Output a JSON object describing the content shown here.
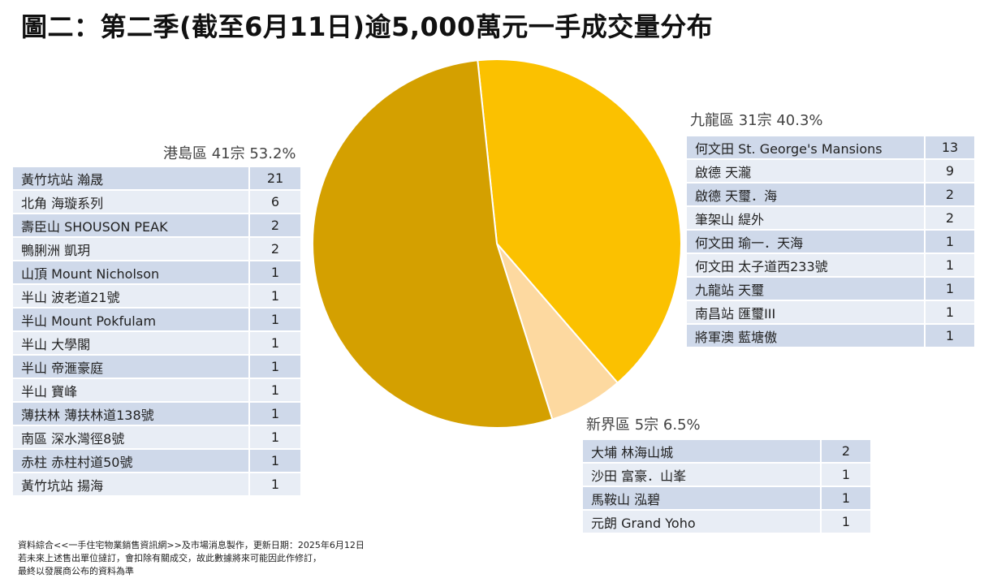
{
  "title": "圖二：第二季(截至6月11日)逾5,000萬元一手成交量分布",
  "colors": {
    "hk_island": "#d4a000",
    "kowloon": "#fbc100",
    "new_territories": "#fdd9a0",
    "row_odd": "#cfd9ea",
    "row_even": "#e8edf5"
  },
  "chart_data": {
    "type": "pie",
    "title": "圖二：第二季(截至6月11日)逾5,000萬元一手成交量分布",
    "slices": [
      {
        "label": "九龍區",
        "count": 31,
        "percent": 40.3,
        "color": "#fbc100"
      },
      {
        "label": "新界區",
        "count": 5,
        "percent": 6.5,
        "color": "#fdd9a0"
      },
      {
        "label": "港島區",
        "count": 41,
        "percent": 53.2,
        "color": "#d4a000"
      }
    ]
  },
  "regions": {
    "hk_island": {
      "heading": "港島區 41宗 53.2%",
      "rows": [
        {
          "name": "黃竹坑站 瀚晟",
          "count": "21"
        },
        {
          "name": "北角 海璇系列",
          "count": "6"
        },
        {
          "name": "壽臣山 SHOUSON PEAK",
          "count": "2"
        },
        {
          "name": "鴨脷洲 凱玥",
          "count": "2"
        },
        {
          "name": "山頂 Mount Nicholson",
          "count": "1"
        },
        {
          "name": "半山 波老道21號",
          "count": "1"
        },
        {
          "name": "半山 Mount Pokfulam",
          "count": "1"
        },
        {
          "name": "半山 大學閣",
          "count": "1"
        },
        {
          "name": "半山 帝滙豪庭",
          "count": "1"
        },
        {
          "name": "半山 寶峰",
          "count": "1"
        },
        {
          "name": "薄扶林 薄扶林道138號",
          "count": "1"
        },
        {
          "name": "南區 深水灣徑8號",
          "count": "1"
        },
        {
          "name": "赤柱 赤柱村道50號",
          "count": "1"
        },
        {
          "name": "黃竹坑站 揚海",
          "count": "1"
        }
      ]
    },
    "kowloon": {
      "heading": "九龍區 31宗 40.3%",
      "rows": [
        {
          "name": "何文田 St. George's Mansions",
          "count": "13"
        },
        {
          "name": "啟德 天瀧",
          "count": "9"
        },
        {
          "name": "啟德 天璽．海",
          "count": "2"
        },
        {
          "name": "筆架山 緹外",
          "count": "2"
        },
        {
          "name": "何文田 瑜一．天海",
          "count": "1"
        },
        {
          "name": "何文田 太子道西233號",
          "count": "1"
        },
        {
          "name": "九龍站 天璽",
          "count": "1"
        },
        {
          "name": "南昌站 匯璽III",
          "count": "1"
        },
        {
          "name": "將軍澳 藍塘傲",
          "count": "1"
        }
      ]
    },
    "new_territories": {
      "heading": "新界區 5宗 6.5%",
      "rows": [
        {
          "name": "大埔 林海山城",
          "count": "2"
        },
        {
          "name": "沙田 富豪．山峯",
          "count": "1"
        },
        {
          "name": "馬鞍山 泓碧",
          "count": "1"
        },
        {
          "name": "元朗 Grand Yoho",
          "count": "1"
        }
      ]
    }
  },
  "footnote": {
    "line1": "資料綜合<<一手住宅物業銷售資訊網>>及市場消息製作，更新日期：2025年6月12日",
    "line2": "若未來上述售出單位撻訂，會扣除有關成交，故此數據將來可能因此作修訂，",
    "line3": "最終以發展商公布的資料為準"
  }
}
